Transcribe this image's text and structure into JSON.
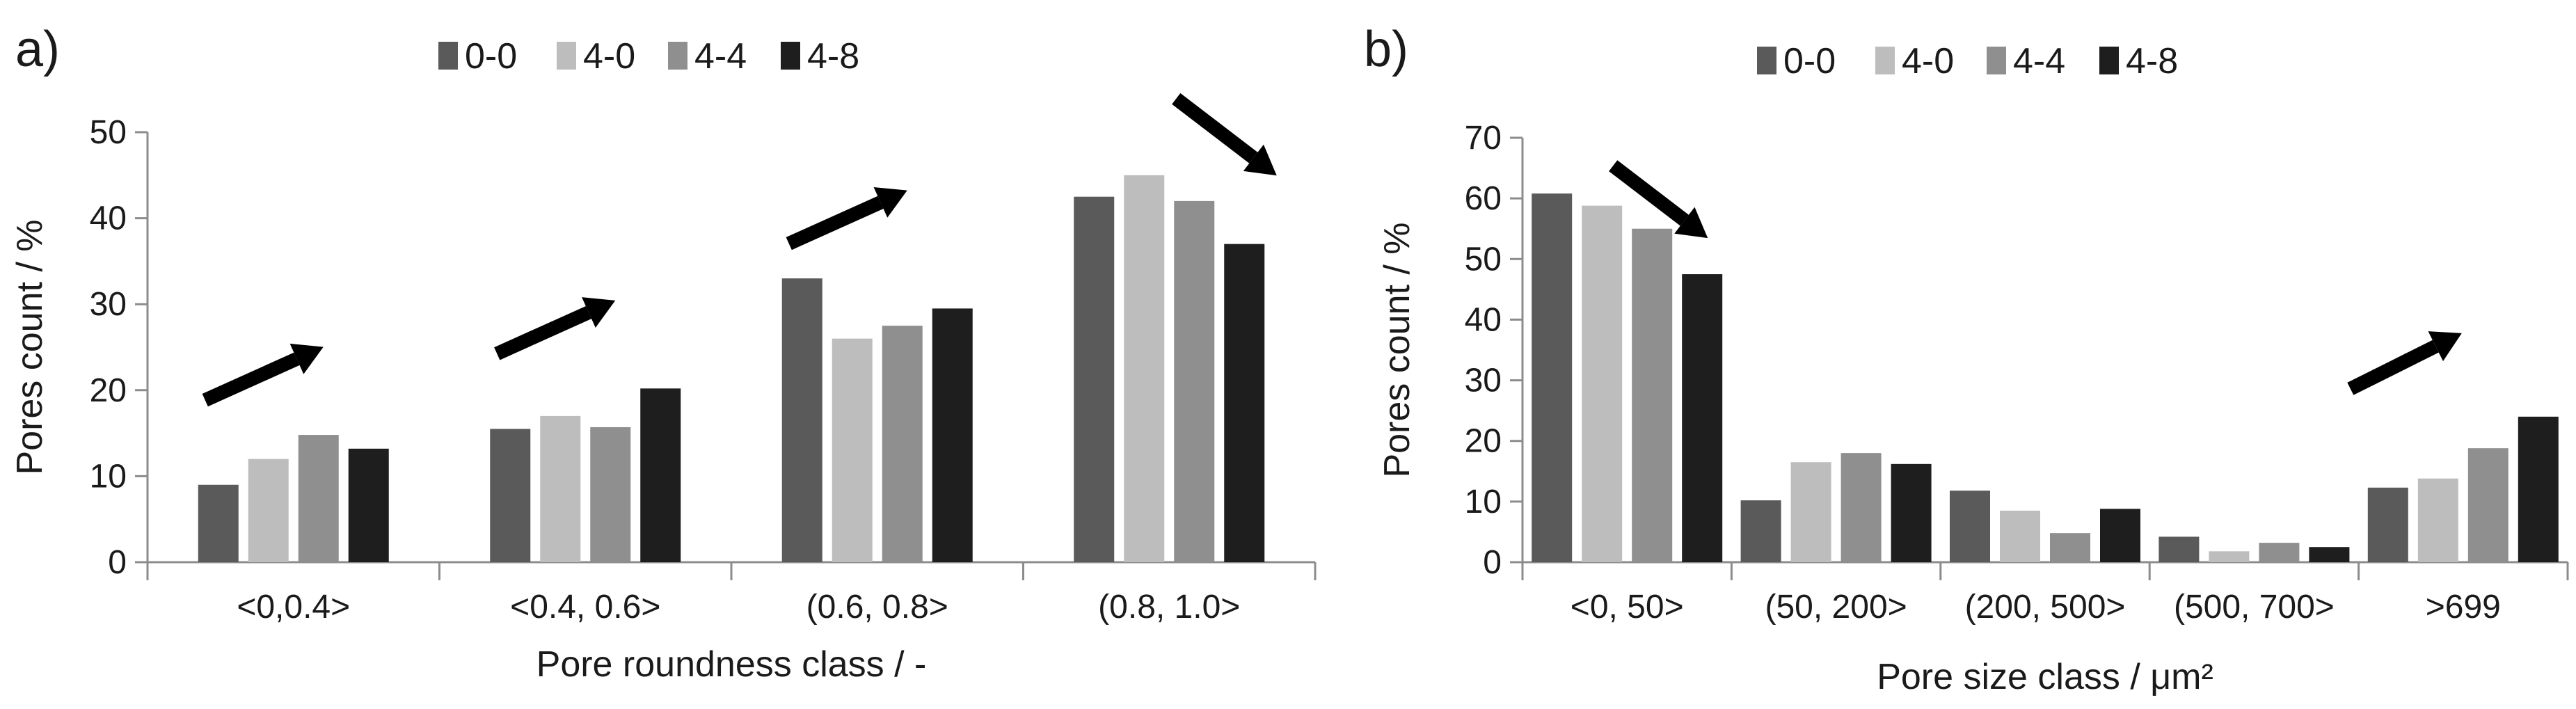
{
  "series_colors": {
    "0-0": "#5a5a5a",
    "4-0": "#bdbdbd",
    "4-4": "#8f8f8f",
    "4-8": "#1e1e1e"
  },
  "chart_data": [
    {
      "panel_label": "a)",
      "type": "bar",
      "xlabel": "Pore roundness class  / -",
      "ylabel": "Pores count / %",
      "ylim": [
        0,
        50
      ],
      "yticks": [
        "0",
        "10",
        "20",
        "30",
        "40",
        "50"
      ],
      "categories": [
        "<0,0.4>",
        "<0.4, 0.6>",
        "(0.6, 0.8>",
        "(0.8, 1.0>"
      ],
      "series": [
        {
          "name": "0-0",
          "values": [
            9,
            15.5,
            33,
            42.5
          ]
        },
        {
          "name": "4-0",
          "values": [
            12,
            17,
            26,
            45
          ]
        },
        {
          "name": "4-4",
          "values": [
            14.8,
            15.7,
            27.5,
            42
          ]
        },
        {
          "name": "4-8",
          "values": [
            13.2,
            20.2,
            29.5,
            37
          ]
        }
      ],
      "trend_arrows": [
        "up",
        "up",
        "up",
        "down"
      ]
    },
    {
      "panel_label": "b)",
      "type": "bar",
      "xlabel": "Pore size class  / μm²",
      "ylabel": "Pores count / %",
      "ylim": [
        0,
        70
      ],
      "yticks": [
        "0",
        "10",
        "20",
        "30",
        "40",
        "50",
        "60",
        "70"
      ],
      "categories": [
        "<0, 50>",
        "(50, 200>",
        "(200, 500>",
        "(500, 700>",
        ">699"
      ],
      "series": [
        {
          "name": "0-0",
          "values": [
            60.8,
            10.2,
            11.8,
            4.2,
            12.3
          ]
        },
        {
          "name": "4-0",
          "values": [
            58.8,
            16.5,
            8.5,
            1.8,
            13.8
          ]
        },
        {
          "name": "4-4",
          "values": [
            55,
            18,
            4.8,
            3.2,
            18.8
          ]
        },
        {
          "name": "4-8",
          "values": [
            47.5,
            16.2,
            8.8,
            2.5,
            24
          ]
        }
      ],
      "trend_arrows": [
        "down",
        null,
        null,
        null,
        "up"
      ]
    }
  ]
}
